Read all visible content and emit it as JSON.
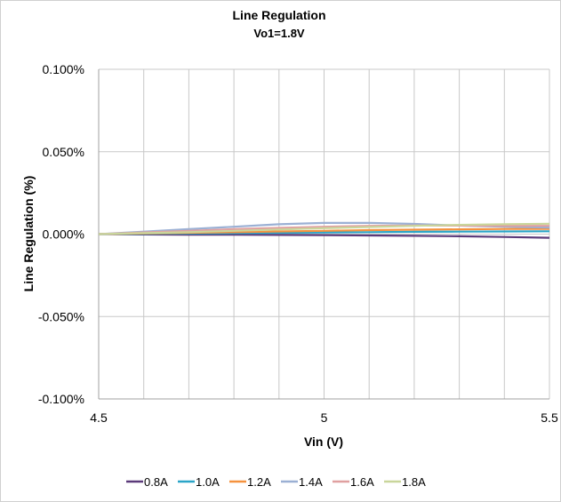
{
  "chart_data": {
    "type": "line",
    "title": "Line Regulation",
    "subtitle": "Vo1=1.8V",
    "xlabel": "Vin (V)",
    "ylabel": "Line Regulation (%)",
    "xlim": [
      4.5,
      5.5
    ],
    "ylim": [
      -0.1,
      0.1
    ],
    "x_ticks": [
      4.5,
      5,
      5.5
    ],
    "x_tick_labels": [
      "4.5",
      "5",
      "5.5"
    ],
    "y_ticks": [
      0.1,
      0.05,
      0.0,
      -0.05,
      -0.1
    ],
    "y_tick_labels": [
      "0.100%",
      "0.050%",
      "0.000%",
      "-0.050%",
      "-0.100%"
    ],
    "grid": true,
    "legend_position": "bottom",
    "x": [
      4.5,
      4.6,
      4.7,
      4.8,
      4.9,
      5.0,
      5.1,
      5.2,
      5.3,
      5.4,
      5.5
    ],
    "series": [
      {
        "name": "0.8A",
        "color": "#5b3a7a",
        "values": [
          0.0,
          -0.0002,
          -0.0003,
          -0.0004,
          -0.0005,
          -0.0006,
          -0.0008,
          -0.001,
          -0.0013,
          -0.0017,
          -0.0022
        ]
      },
      {
        "name": "1.0A",
        "color": "#2aa5c8",
        "values": [
          0.0,
          0.0002,
          0.0004,
          0.0006,
          0.0008,
          0.001,
          0.0012,
          0.0014,
          0.0015,
          0.0016,
          0.0017
        ]
      },
      {
        "name": "1.2A",
        "color": "#f5923e",
        "values": [
          0.0,
          0.0004,
          0.0008,
          0.0012,
          0.0016,
          0.002,
          0.0024,
          0.0027,
          0.0029,
          0.0031,
          0.0032
        ]
      },
      {
        "name": "1.4A",
        "color": "#9bb0d4",
        "values": [
          0.0,
          0.0015,
          0.003,
          0.0045,
          0.006,
          0.0068,
          0.0068,
          0.0062,
          0.0052,
          0.0045,
          0.004
        ]
      },
      {
        "name": "1.6A",
        "color": "#e0a0a0",
        "values": [
          0.0,
          0.001,
          0.002,
          0.003,
          0.0038,
          0.0045,
          0.005,
          0.0052,
          0.0052,
          0.005,
          0.005
        ]
      },
      {
        "name": "1.8A",
        "color": "#c9d69b",
        "values": [
          0.0,
          0.0006,
          0.0012,
          0.002,
          0.0028,
          0.0036,
          0.0043,
          0.005,
          0.0056,
          0.006,
          0.0063
        ]
      }
    ]
  }
}
